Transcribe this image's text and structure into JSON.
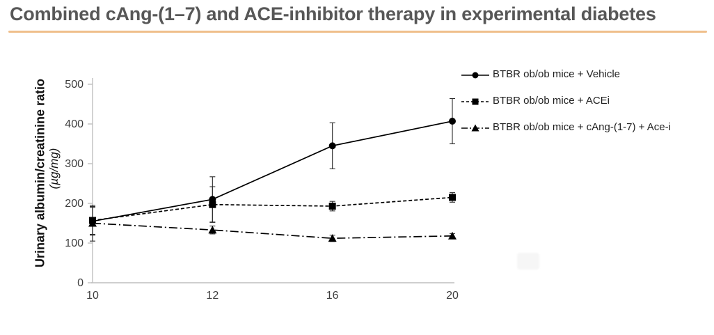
{
  "header": {
    "title": "Combined cAng-(1–7) and ACE-inhibitor therapy in experimental diabetes",
    "underline_color": "#EFBF8B"
  },
  "y_axis": {
    "label_line1": "Urinary albumin/creatinine ratio",
    "label_line2": "(µg/mg)",
    "tick_labels": [
      "0",
      "100",
      "200",
      "300",
      "400",
      "500"
    ]
  },
  "x_axis": {
    "tick_labels": [
      "10",
      "12",
      "16",
      "20"
    ]
  },
  "colors": {
    "axis": "#BFBFBF",
    "tick_text": "#3d3d3d",
    "series": "#000000",
    "error_bar": "#2b2b2b"
  },
  "chart_data": {
    "type": "line",
    "title": "Combined cAng-(1–7) and ACE-inhibitor therapy in experimental diabetes",
    "xlabel": "",
    "ylabel": "Urinary albumin/creatinine ratio (µg/mg)",
    "x": [
      10,
      12,
      16,
      20
    ],
    "x_scale": "categorical-even-spacing",
    "ylim": [
      0,
      500
    ],
    "yticks": [
      0,
      100,
      200,
      300,
      400,
      500
    ],
    "grid": false,
    "legend_position": "top-right",
    "error_bars": true,
    "series": [
      {
        "name": "BTBR ob/ob mice + Vehicle",
        "values": [
          155,
          210,
          345,
          407
        ],
        "errors": [
          35,
          57,
          58,
          57
        ],
        "marker": "circle",
        "line_style": "solid",
        "color": "#000000"
      },
      {
        "name": "BTBR ob/ob mice + ACEi",
        "values": [
          157,
          197,
          193,
          215
        ],
        "errors": [
          35,
          45,
          12,
          12
        ],
        "marker": "square",
        "line_style": "dashed",
        "color": "#000000"
      },
      {
        "name": "BTBR ob/ob mice +  cAng-(1-7) + Ace-i",
        "values": [
          150,
          133,
          112,
          118
        ],
        "errors": [
          45,
          10,
          8,
          6
        ],
        "marker": "triangle",
        "line_style": "dash-dot",
        "color": "#000000"
      }
    ]
  }
}
